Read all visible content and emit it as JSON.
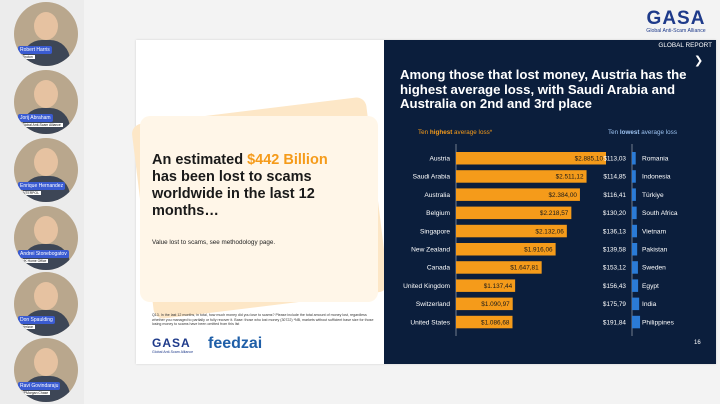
{
  "participants": [
    {
      "name": "Robert Harris",
      "org": "Photon"
    },
    {
      "name": "Jorij Abraham",
      "org": "Global Anti-Scam Alliance"
    },
    {
      "name": "Enrique Hernandez",
      "org": "INTERPOL"
    },
    {
      "name": "Andrei Stonebogatov",
      "org": "UK Home Office"
    },
    {
      "name": "Don Spaulding",
      "org": "Verizon"
    },
    {
      "name": "Ravi Govindaraju",
      "org": "JPMorgan Chase"
    }
  ],
  "brand": {
    "logo_text": "GASA",
    "logo_sub": "Global Anti-Scam Alliance",
    "report_label": "GLOBAL REPORT",
    "partner_logo": "feedzai",
    "colors": {
      "navy": "#0b1e3c",
      "orange": "#f59b1a",
      "blue": "#2b7bd6",
      "logo_blue": "#1e3a8a"
    }
  },
  "left_panel": {
    "headline_pre": "An estimated ",
    "headline_amount": "$442 Billion",
    "headline_post": " has been lost to scams worldwide in the last 12 months…",
    "caption": "Value lost to scams, see methodology page.",
    "footnote": "Q13. In the last 12 months, in total, how much money did you lose to scams? Please include the total amount of money lost, regardless whether you managed to partially or fully recover it. Base: those who lost money (30722) *NB, markets without sufficient base size for those losing money to scams have been omitted from this list"
  },
  "page_number": "16",
  "chart_data": {
    "type": "bar",
    "title": "Among those that lost money, Austria has the highest average loss, with Saudi Arabia and Australia on 2nd and 3rd place",
    "highest": {
      "legend": "Ten highest average loss*",
      "legend_pre": "Ten ",
      "legend_strong": "highest",
      "legend_post": " average loss*",
      "categories": [
        "Austria",
        "Saudi Arabia",
        "Australia",
        "Belgium",
        "Singapore",
        "New Zealand",
        "Canada",
        "United Kingdom",
        "Switzerland",
        "United States"
      ],
      "values": [
        2885.1,
        2511.12,
        2384.0,
        2218.57,
        2132.06,
        1916.06,
        1647.81,
        1137.44,
        1090.97,
        1086.68
      ],
      "labels": [
        "$2.885,10",
        "$2.511,12",
        "$2.384,00",
        "$2.218,57",
        "$2.132,06",
        "$1.916,06",
        "$1.647,81",
        "$1.137,44",
        "$1.090,97",
        "$1.086,68"
      ],
      "color": "#f59b1a"
    },
    "lowest": {
      "legend": "Ten lowest average loss",
      "legend_pre": "Ten ",
      "legend_strong": "lowest",
      "legend_post": " average loss",
      "categories": [
        "Romania",
        "Indonesia",
        "Türkiye",
        "South Africa",
        "Vietnam",
        "Pakistan",
        "Sweden",
        "Egypt",
        "India",
        "Philippines"
      ],
      "values": [
        113.03,
        114.85,
        116.41,
        130.2,
        136.13,
        139.58,
        153.12,
        156.43,
        175.79,
        191.84
      ],
      "labels": [
        "$113,03",
        "$114,85",
        "$116,41",
        "$130,20",
        "$136,13",
        "$139,58",
        "$153,12",
        "$156,43",
        "$175,79",
        "$191,84"
      ],
      "color": "#2b7bd6"
    }
  }
}
